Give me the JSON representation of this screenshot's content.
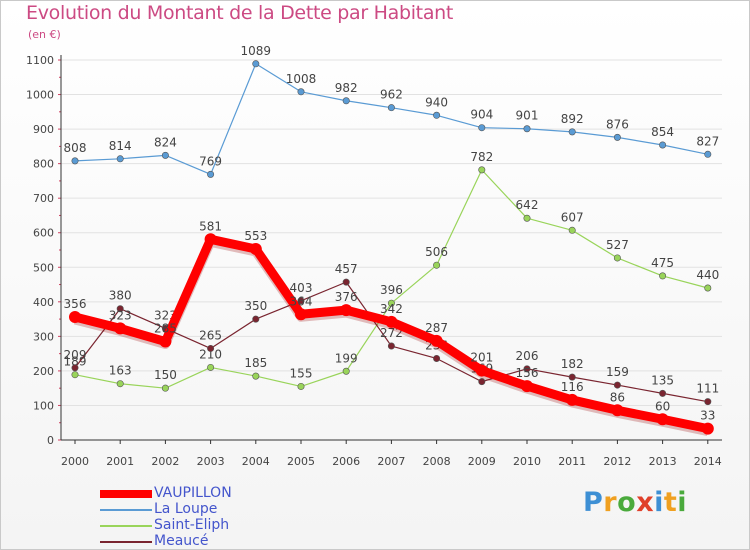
{
  "title": "Evolution du Montant de la Dette par Habitant",
  "subtitle": "(en €)",
  "chart_data": {
    "type": "line",
    "title": "Evolution du Montant de la Dette par Habitant",
    "ylabel": "(en €)",
    "xlabel": "",
    "x": [
      "2000",
      "2001",
      "2002",
      "2003",
      "2004",
      "2005",
      "2006",
      "2007",
      "2008",
      "2009",
      "2010",
      "2011",
      "2012",
      "2013",
      "2014"
    ],
    "yticks": [
      "0",
      "100",
      "200",
      "300",
      "400",
      "500",
      "600",
      "700",
      "800",
      "900",
      "1000",
      "1100"
    ],
    "ylim": [
      0,
      1100
    ],
    "grid": "horizontal",
    "legend_position": "bottom-left",
    "series": [
      {
        "name": "La Loupe",
        "color": "#5a9bd4",
        "values": [
          808,
          814,
          824,
          769,
          1089,
          1008,
          982,
          962,
          940,
          904,
          901,
          892,
          876,
          854,
          827
        ]
      },
      {
        "name": "Saint-Eliph",
        "color": "#99d45a",
        "values": [
          189,
          163,
          150,
          210,
          185,
          155,
          199,
          396,
          506,
          782,
          642,
          607,
          527,
          475,
          440
        ]
      },
      {
        "name": "Meaucé",
        "color": "#7a2530",
        "values": [
          209,
          380,
          323,
          265,
          350,
          403,
          457,
          272,
          236,
          169,
          206,
          182,
          159,
          135,
          111
        ]
      },
      {
        "name": "VAUPILLON",
        "color": "#ff0000",
        "values": [
          356,
          323,
          285,
          581,
          553,
          364,
          376,
          342,
          287,
          201,
          156,
          116,
          86,
          60,
          33
        ]
      }
    ]
  },
  "legend": [
    {
      "label": "VAUPILLON",
      "color": "#ff0000",
      "text_color": "#4455cc"
    },
    {
      "label": "La Loupe",
      "color": "#5a9bd4",
      "text_color": "#4455cc"
    },
    {
      "label": "Saint-Eliph",
      "color": "#99d45a",
      "text_color": "#4455cc"
    },
    {
      "label": "Meaucé",
      "color": "#7a2530",
      "text_color": "#4455cc"
    }
  ],
  "logo": {
    "text": "Proxiti",
    "letter_colors": [
      "#3d8fd4",
      "#f0a020",
      "#4aaa3c",
      "#e0402a",
      "#3d8fd4",
      "#f0a020",
      "#4aaa3c"
    ]
  }
}
